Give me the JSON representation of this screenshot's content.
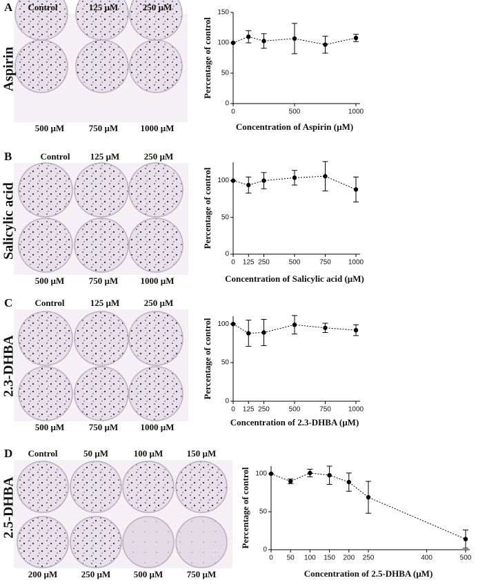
{
  "panels": [
    {
      "letter": "A",
      "compound": "Aspirin",
      "dish_labels": [
        "Control",
        "125 µM",
        "250 µM",
        "500 µM",
        "750 µM",
        "1000 µM"
      ]
    },
    {
      "letter": "B",
      "compound": "Salicylic acid",
      "dish_labels": [
        "Control",
        "125 µM",
        "250 µM",
        "500 µM",
        "750 µM",
        "1000 µM"
      ]
    },
    {
      "letter": "C",
      "compound": "2.3-DHBA",
      "dish_labels": [
        "Control",
        "125 µM",
        "250 µM",
        "500 µM",
        "750 µM",
        "1000 µM"
      ]
    },
    {
      "letter": "D",
      "compound": "2.5-DHBA",
      "dish_labels": [
        "Control",
        "50 µM",
        "100 µM",
        "150 µM",
        "200 µM",
        "250 µM",
        "500 µM",
        "750 µM"
      ]
    }
  ],
  "chart_data": [
    {
      "type": "line",
      "x_label": "Concentration of Aspirin (µM)",
      "y_label": "Percentage of control",
      "x": [
        0,
        125,
        250,
        500,
        750,
        1000
      ],
      "values": [
        100,
        110,
        103,
        107,
        97,
        108
      ],
      "errors": [
        0,
        10,
        12,
        25,
        14,
        6
      ],
      "xlim": [
        0,
        1000
      ],
      "ylim": [
        0,
        150
      ],
      "xticks": [
        0,
        500,
        1000
      ],
      "yticks": [
        0,
        50,
        100,
        150
      ],
      "color": "#000000"
    },
    {
      "type": "line",
      "x_label": "Concentration of Salicylic acid (µM)",
      "y_label": "Percentage of control",
      "x": [
        0,
        125,
        250,
        500,
        750,
        1000
      ],
      "values": [
        100,
        94,
        100,
        104,
        106,
        88
      ],
      "errors": [
        0,
        11,
        11,
        10,
        20,
        17
      ],
      "xlim": [
        0,
        1000
      ],
      "ylim": [
        0,
        125
      ],
      "xticks": [
        0,
        125,
        250,
        500,
        750,
        1000
      ],
      "yticks": [
        0,
        50,
        100
      ],
      "color": "#000000"
    },
    {
      "type": "line",
      "x_label": "Concentration of 2.3-DHBA (µM)",
      "y_label": "Percentage of control",
      "x": [
        0,
        125,
        250,
        500,
        750,
        1000
      ],
      "values": [
        100,
        88,
        89,
        99,
        95,
        92
      ],
      "errors": [
        0,
        17,
        17,
        12,
        6,
        7
      ],
      "xlim": [
        0,
        1000
      ],
      "ylim": [
        0,
        110
      ],
      "xticks": [
        0,
        125,
        250,
        500,
        750,
        1000
      ],
      "yticks": [
        0,
        50,
        100
      ],
      "color": "#000000"
    },
    {
      "type": "line",
      "x_label": "Concentration of 2.5-DHBA (µM)",
      "y_label": "Percentage of control",
      "x": [
        0,
        50,
        100,
        150,
        200,
        250,
        500
      ],
      "values": [
        100,
        90,
        101,
        98,
        89,
        69,
        14
      ],
      "errors": [
        0,
        3,
        5,
        12,
        12,
        21,
        12
      ],
      "xlim": [
        0,
        500
      ],
      "ylim": [
        0,
        110
      ],
      "xticks": [
        0,
        50,
        100,
        150,
        200,
        250,
        400,
        500
      ],
      "yticks": [
        0,
        50,
        100
      ],
      "color": "#000000"
    }
  ]
}
